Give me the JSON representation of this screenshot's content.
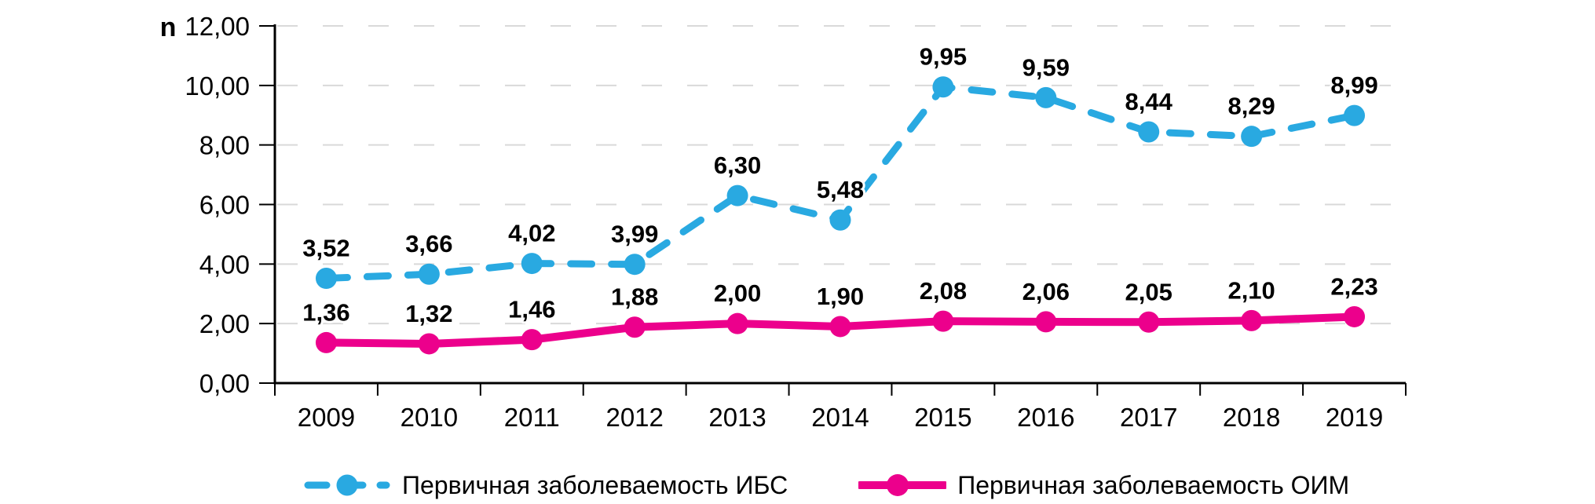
{
  "chart_data": {
    "type": "line",
    "title": "",
    "xlabel": "",
    "ylabel": "n",
    "categories": [
      "2009",
      "2010",
      "2011",
      "2012",
      "2013",
      "2014",
      "2015",
      "2016",
      "2017",
      "2018",
      "2019"
    ],
    "ylim": [
      0,
      12
    ],
    "y_ticks": [
      0,
      2,
      4,
      6,
      8,
      10,
      12
    ],
    "y_tick_labels": [
      "0,00",
      "2,00",
      "4,00",
      "6,00",
      "8,00",
      "10,00",
      "12,00"
    ],
    "grid": "horizontal-dashed",
    "gridline_color": "#D9D9D9",
    "axis_color": "#000000",
    "label_color": "#000000",
    "legend_position": "bottom",
    "series": [
      {
        "name": "Первичная заболеваемость ИБС",
        "color": "#29A9E1",
        "line_style": "dashed",
        "marker": "circle",
        "values": [
          3.52,
          3.66,
          4.02,
          3.99,
          6.3,
          5.48,
          9.95,
          9.59,
          8.44,
          8.29,
          8.99
        ],
        "labels": [
          "3,52",
          "3,66",
          "4,02",
          "3,99",
          "6,30",
          "5,48",
          "9,95",
          "9,59",
          "8,44",
          "8,29",
          "8,99"
        ]
      },
      {
        "name": "Первичная заболеваемость ОИМ",
        "color": "#EC008C",
        "line_style": "solid",
        "marker": "circle",
        "values": [
          1.36,
          1.32,
          1.46,
          1.88,
          2.0,
          1.9,
          2.08,
          2.06,
          2.05,
          2.1,
          2.23
        ],
        "labels": [
          "1,36",
          "1,32",
          "1,46",
          "1,88",
          "2,00",
          "1,90",
          "2,08",
          "2,06",
          "2,05",
          "2,10",
          "2,23"
        ]
      }
    ]
  }
}
